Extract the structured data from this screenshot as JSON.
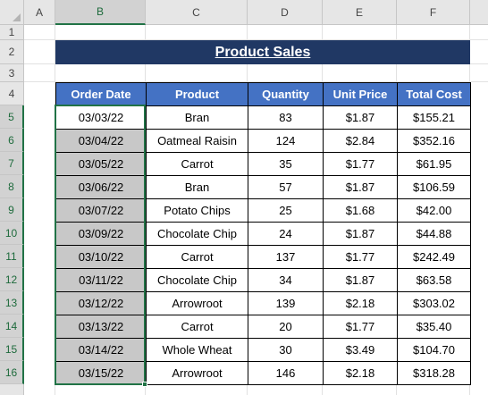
{
  "columns": [
    "A",
    "B",
    "C",
    "D",
    "E",
    "F"
  ],
  "rows": [
    "1",
    "2",
    "3",
    "4",
    "5",
    "6",
    "7",
    "8",
    "9",
    "10",
    "11",
    "12",
    "13",
    "14",
    "15",
    "16"
  ],
  "title": "Product Sales",
  "table": {
    "headers": [
      "Order Date",
      "Product",
      "Quantity",
      "Unit Price",
      "Total Cost"
    ],
    "rows": [
      [
        "03/03/22",
        "Bran",
        "83",
        "$1.87",
        "$155.21"
      ],
      [
        "03/04/22",
        "Oatmeal Raisin",
        "124",
        "$2.84",
        "$352.16"
      ],
      [
        "03/05/22",
        "Carrot",
        "35",
        "$1.77",
        "$61.95"
      ],
      [
        "03/06/22",
        "Bran",
        "57",
        "$1.87",
        "$106.59"
      ],
      [
        "03/07/22",
        "Potato Chips",
        "25",
        "$1.68",
        "$42.00"
      ],
      [
        "03/09/22",
        "Chocolate Chip",
        "24",
        "$1.87",
        "$44.88"
      ],
      [
        "03/10/22",
        "Carrot",
        "137",
        "$1.77",
        "$242.49"
      ],
      [
        "03/11/22",
        "Chocolate Chip",
        "34",
        "$1.87",
        "$63.58"
      ],
      [
        "03/12/22",
        "Arrowroot",
        "139",
        "$2.18",
        "$303.02"
      ],
      [
        "03/13/22",
        "Carrot",
        "20",
        "$1.77",
        "$35.40"
      ],
      [
        "03/14/22",
        "Whole Wheat",
        "30",
        "$3.49",
        "$104.70"
      ],
      [
        "03/15/22",
        "Arrowroot",
        "146",
        "$2.18",
        "$318.28"
      ]
    ]
  },
  "selected_column": "B",
  "colors": {
    "title_bg": "#203864",
    "header_bg": "#4472c4",
    "selection": "#217346",
    "selected_fill": "#c8c8c8"
  }
}
